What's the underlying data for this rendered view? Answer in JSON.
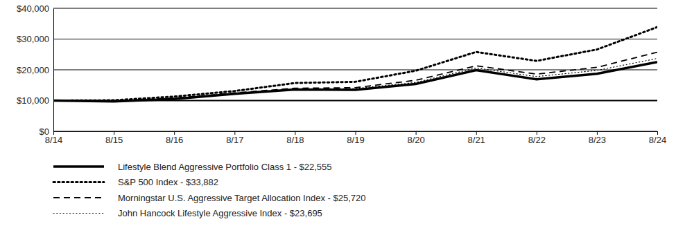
{
  "chart_data": {
    "type": "line",
    "categories": [
      "8/14",
      "8/15",
      "8/16",
      "8/17",
      "8/18",
      "8/19",
      "8/20",
      "8/21",
      "8/22",
      "8/23",
      "8/24"
    ],
    "series": [
      {
        "name": "Lifestyle Blend Aggressive Portfolio Class 1 - $22,555",
        "color": "#000000",
        "line_style": "solid",
        "values": [
          10000,
          9700,
          10500,
          12200,
          13600,
          13500,
          15400,
          19900,
          16900,
          18700,
          22555
        ]
      },
      {
        "name": "S&P 500 Index - $33,882",
        "color": "#000000",
        "line_style": "dotted",
        "values": [
          10000,
          10100,
          11300,
          13100,
          15700,
          16100,
          19700,
          25800,
          22900,
          26600,
          33882
        ]
      },
      {
        "name": "Morningstar U.S. Aggressive Target Allocation Index - $25,720",
        "color": "#000000",
        "line_style": "dashed",
        "values": [
          10000,
          9800,
          10800,
          12500,
          14000,
          14200,
          16600,
          21300,
          18600,
          20800,
          25720
        ]
      },
      {
        "name": "John Hancock Lifestyle Aggressive Index - $23,695",
        "color": "#000000",
        "line_style": "dotted",
        "values": [
          10000,
          9900,
          10700,
          12400,
          13800,
          13900,
          15900,
          20600,
          17800,
          19800,
          23695
        ]
      }
    ],
    "ylim": [
      0,
      40000
    ],
    "yticks": [
      {
        "value": 0,
        "label": "$0"
      },
      {
        "value": 10000,
        "label": "$10,000"
      },
      {
        "value": 20000,
        "label": "$20,000"
      },
      {
        "value": 30000,
        "label": "$30,000"
      },
      {
        "value": 40000,
        "label": "$40,000"
      }
    ],
    "grid": true,
    "legend": "bottom-left"
  }
}
